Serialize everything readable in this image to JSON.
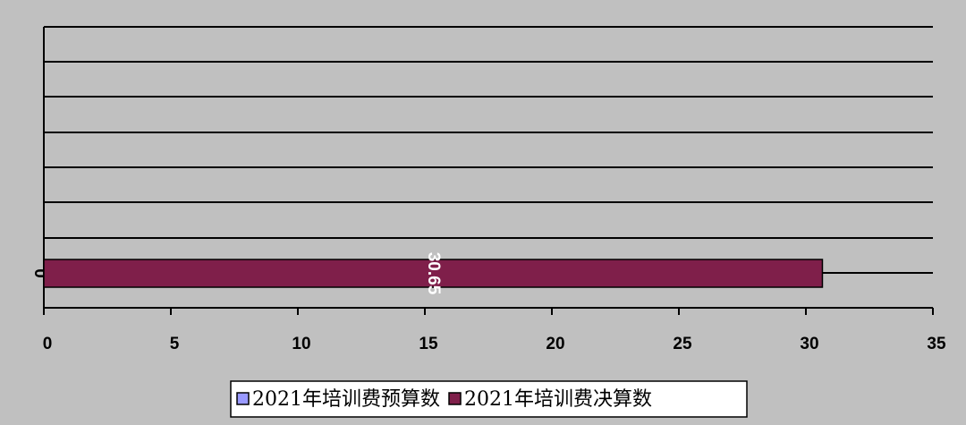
{
  "chart_data": {
    "type": "bar",
    "orientation": "horizontal",
    "categories": [
      null
    ],
    "series": [
      {
        "name": "2021年培训费预算数",
        "color": "#9999ff",
        "values": [
          0
        ]
      },
      {
        "name": "2021年培训费决算数",
        "color": "#7f1f4a",
        "values": [
          30.65
        ]
      }
    ],
    "xlim": [
      0,
      35
    ],
    "xticks": [
      0,
      5,
      10,
      15,
      20,
      25,
      30,
      35
    ],
    "legend": "bottom"
  }
}
